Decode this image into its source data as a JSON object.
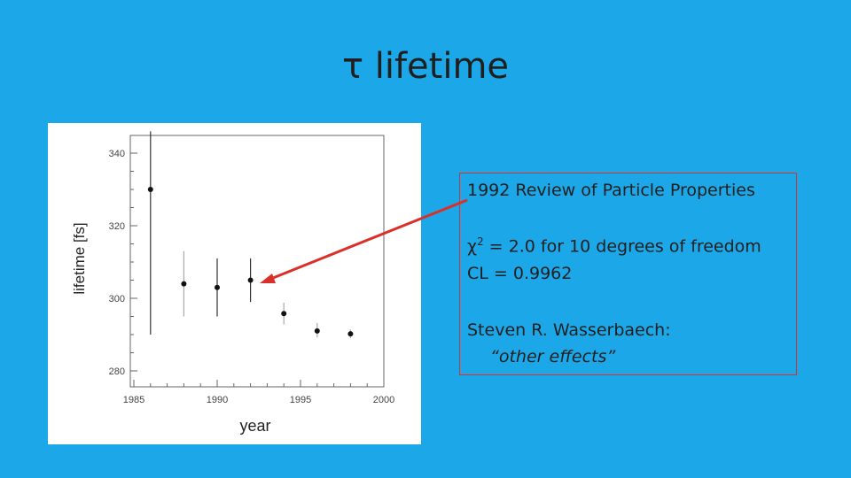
{
  "slide": {
    "title": "τ lifetime"
  },
  "annotation": {
    "source": "1992 Review of Particle Properties",
    "chi2_symbol": "χ",
    "chi2_exp": "2",
    "chi2_rest": " = 2.0 for 10 degrees of freedom",
    "cl": "CL = 0.9962",
    "author": "Steven R. Wasserbaech:",
    "quote": "“other effects”"
  },
  "colors": {
    "background": "#1ca7e8",
    "arrow": "#d9302c"
  },
  "chart_data": {
    "type": "scatter",
    "xlabel": "year",
    "ylabel": "lifetime [fs]",
    "xlim": [
      1984,
      2001
    ],
    "ylim": [
      275,
      345
    ],
    "x_ticks": [
      1985,
      1990,
      1995,
      2000
    ],
    "y_ticks": [
      280,
      300,
      320,
      340
    ],
    "grid": false,
    "points": [
      {
        "x": 1986,
        "y": 330,
        "err_low": 40,
        "err_high": 16
      },
      {
        "x": 1988,
        "y": 304,
        "err_low": 9,
        "err_high": 9,
        "light_err": true
      },
      {
        "x": 1990,
        "y": 303,
        "err_low": 8,
        "err_high": 8
      },
      {
        "x": 1992,
        "y": 305,
        "err_low": 6,
        "err_high": 6,
        "highlighted": true
      },
      {
        "x": 1994,
        "y": 295.8,
        "err_low": 3,
        "err_high": 3,
        "light_err": true
      },
      {
        "x": 1996,
        "y": 291,
        "err_low": 1.8,
        "err_high": 2.2,
        "light_err": true
      },
      {
        "x": 1998,
        "y": 290.2,
        "err_low": 1.2,
        "err_high": 1.2,
        "light_err": true
      }
    ]
  }
}
